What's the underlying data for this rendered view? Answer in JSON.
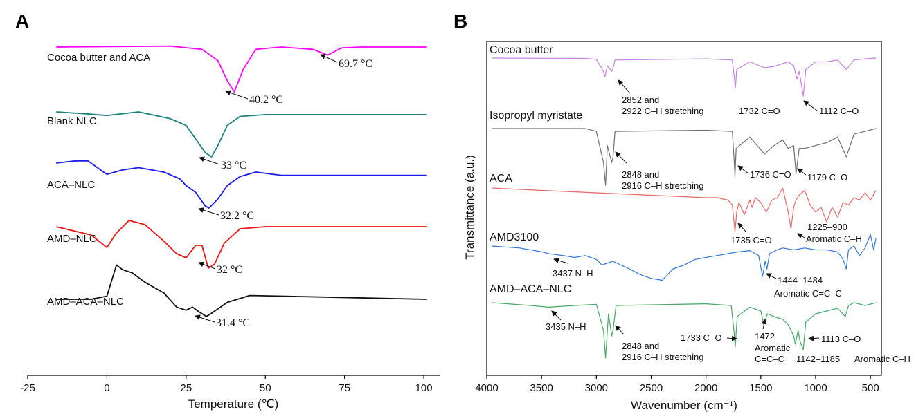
{
  "chart_data": [
    {
      "panel": "A",
      "type": "line",
      "xlabel": "Temperature (℃)",
      "ylabel": "",
      "xlim": [
        -25,
        105
      ],
      "xticks": [
        "-25",
        "0",
        "25",
        "50",
        "75",
        "100"
      ],
      "x_tick_values": [
        -25,
        0,
        25,
        50,
        75,
        100
      ],
      "grid": false,
      "series": [
        {
          "name": "Cocoa butter and ACA",
          "color": "#ff00ff",
          "x": [
            -16,
            20,
            30,
            35,
            38,
            40.2,
            43,
            47,
            55,
            65,
            69.7,
            74,
            80,
            101
          ],
          "y": [
            0,
            0.02,
            -0.05,
            -0.3,
            -0.75,
            -1.0,
            -0.5,
            -0.05,
            0,
            -0.05,
            -0.18,
            -0.02,
            0,
            0
          ]
        },
        {
          "name": "Blank NLC",
          "color": "#1a8080",
          "x": [
            -16,
            -5,
            0,
            5,
            10,
            20,
            25,
            28,
            31,
            33,
            35,
            38,
            42,
            50,
            101
          ],
          "y": [
            0,
            -0.05,
            -0.08,
            -0.04,
            0,
            -0.15,
            -0.3,
            -0.6,
            -0.9,
            -1.0,
            -0.75,
            -0.3,
            -0.1,
            -0.06,
            -0.06
          ]
        },
        {
          "name": "ACA–NLC",
          "color": "#1a1aee",
          "x": [
            -16,
            -10,
            -6,
            -3,
            0,
            5,
            10,
            18,
            23,
            25,
            28,
            31,
            32.2,
            35,
            38,
            42,
            47,
            55,
            101
          ],
          "y": [
            0,
            0.05,
            0.05,
            -0.1,
            -0.25,
            -0.15,
            -0.1,
            -0.2,
            -0.35,
            -0.5,
            -0.65,
            -0.95,
            -1.0,
            -0.8,
            -0.5,
            -0.3,
            -0.2,
            -0.27,
            -0.27
          ]
        },
        {
          "name": "AMD–NLC",
          "color": "#ee1111",
          "x": [
            -16,
            -5,
            0,
            3,
            7,
            12,
            18,
            22,
            25,
            28,
            30,
            32,
            34,
            37,
            42,
            50,
            101
          ],
          "y": [
            0,
            -0.2,
            -0.5,
            -0.15,
            0.15,
            0.05,
            -0.35,
            -0.65,
            -0.75,
            -0.45,
            -0.45,
            -1.0,
            -0.9,
            -0.4,
            -0.05,
            0,
            0
          ]
        },
        {
          "name": "AMD–ACA–NLC",
          "color": "#111111",
          "x": [
            -16,
            -5,
            0,
            3,
            5,
            8,
            12,
            18,
            22,
            25,
            27,
            29,
            31.4,
            33,
            38,
            45,
            55,
            101
          ],
          "y": [
            0,
            0,
            0.1,
            1.1,
            0.95,
            0.85,
            0.55,
            0.2,
            -0.25,
            -0.35,
            -0.25,
            -0.4,
            -0.55,
            -0.45,
            -0.1,
            0.12,
            0.1,
            0
          ]
        }
      ],
      "annotations": [
        "40.2 °C",
        "69.7 °C",
        "33 °C",
        "32.2 °C",
        "32 °C",
        "31.4 °C"
      ]
    },
    {
      "panel": "B",
      "type": "line",
      "xlabel": "Wavenumber (cm⁻¹)",
      "ylabel": "Transmittance (a.u.)",
      "xlim": [
        4000,
        400
      ],
      "xticks": [
        "4000",
        "3500",
        "3000",
        "2500",
        "2000",
        "1500",
        "1000",
        "500"
      ],
      "x_tick_values": [
        4000,
        3500,
        3000,
        2500,
        2000,
        1500,
        1000,
        500
      ],
      "grid": false,
      "series": [
        {
          "name": "Cocoa butter",
          "color": "#c77fe0",
          "x": [
            3950,
            3100,
            3000,
            2935,
            2922,
            2900,
            2860,
            2852,
            2830,
            2000,
            1760,
            1740,
            1732,
            1720,
            1600,
            1470,
            1380,
            1250,
            1200,
            1170,
            1150,
            1112,
            1090,
            1000,
            900,
            800,
            720,
            650,
            550,
            450
          ],
          "y": [
            0.0,
            0.01,
            0.03,
            0.35,
            0.5,
            0.2,
            0.35,
            0.32,
            0.05,
            0.02,
            0.05,
            0.55,
            0.8,
            0.3,
            0.1,
            0.25,
            0.22,
            0.1,
            0.2,
            0.55,
            0.35,
            1.0,
            0.3,
            0.1,
            0.1,
            0.05,
            0.3,
            0.05,
            0.02,
            0.0
          ]
        },
        {
          "name": "Isopropyl myristate",
          "color": "#707070",
          "x": [
            3950,
            3100,
            3000,
            2935,
            2916,
            2900,
            2860,
            2848,
            2830,
            2000,
            1760,
            1745,
            1736,
            1725,
            1600,
            1466,
            1380,
            1300,
            1250,
            1200,
            1179,
            1150,
            1100,
            1000,
            900,
            800,
            720,
            650,
            550,
            450
          ],
          "y": [
            0.0,
            0.0,
            0.05,
            0.6,
            1.0,
            0.3,
            0.6,
            0.5,
            0.05,
            0.03,
            0.05,
            0.5,
            0.85,
            0.35,
            0.15,
            0.45,
            0.3,
            0.2,
            0.35,
            0.3,
            0.8,
            0.35,
            0.35,
            0.3,
            0.25,
            0.15,
            0.5,
            0.1,
            0.05,
            0.0
          ]
        },
        {
          "name": "ACA",
          "color": "#ee6666",
          "x": [
            3950,
            3500,
            3000,
            2500,
            2000,
            1900,
            1800,
            1760,
            1745,
            1735,
            1720,
            1700,
            1650,
            1600,
            1580,
            1550,
            1500,
            1450,
            1400,
            1350,
            1300,
            1250,
            1225,
            1200,
            1180,
            1150,
            1100,
            1050,
            1000,
            950,
            900,
            850,
            800,
            750,
            700,
            650,
            600,
            550,
            500,
            450
          ],
          "y": [
            0.0,
            0.05,
            0.1,
            0.15,
            0.2,
            0.2,
            0.25,
            0.35,
            0.7,
            0.9,
            0.5,
            0.3,
            0.55,
            0.25,
            0.4,
            0.2,
            0.3,
            0.5,
            0.25,
            0.2,
            0.0,
            0.5,
            0.85,
            0.4,
            0.25,
            0.15,
            0.05,
            0.35,
            0.5,
            0.4,
            0.7,
            0.4,
            0.6,
            0.3,
            0.35,
            0.2,
            0.25,
            0.1,
            0.25,
            0.05
          ]
        },
        {
          "name": "AMD3100",
          "color": "#3377dd",
          "x": [
            3950,
            3700,
            3500,
            3437,
            3300,
            3200,
            3100,
            3000,
            2950,
            2850,
            2700,
            2600,
            2500,
            2400,
            2300,
            2200,
            2100,
            2000,
            1900,
            1800,
            1700,
            1600,
            1520,
            1484,
            1460,
            1444,
            1420,
            1350,
            1300,
            1200,
            1100,
            1000,
            900,
            800,
            750,
            720,
            700,
            650,
            600,
            550,
            500,
            470,
            450
          ],
          "y": [
            0.0,
            0.05,
            0.15,
            0.2,
            0.25,
            0.3,
            0.25,
            0.35,
            0.5,
            0.4,
            0.6,
            0.75,
            0.85,
            0.9,
            0.6,
            0.5,
            0.35,
            0.3,
            0.25,
            0.2,
            0.15,
            0.12,
            0.25,
            0.8,
            0.4,
            0.6,
            0.2,
            0.1,
            0.05,
            0.1,
            0.05,
            0.1,
            0.1,
            0.15,
            0.35,
            0.6,
            0.1,
            0.0,
            0.25,
            0.05,
            -0.3,
            0.1,
            -0.2
          ]
        },
        {
          "name": "AMD–ACA–NLC",
          "color": "#44aa66",
          "x": [
            3950,
            3600,
            3435,
            3200,
            3000,
            2935,
            2916,
            2890,
            2860,
            2848,
            2820,
            2000,
            1770,
            1745,
            1733,
            1715,
            1600,
            1500,
            1472,
            1440,
            1380,
            1300,
            1250,
            1200,
            1185,
            1160,
            1142,
            1113,
            1090,
            1000,
            900,
            800,
            730,
            700,
            650,
            550,
            450
          ],
          "y": [
            0.0,
            0.05,
            0.08,
            0.05,
            0.03,
            0.5,
            1.0,
            0.2,
            0.6,
            0.5,
            0.05,
            0.02,
            0.05,
            0.5,
            0.8,
            0.25,
            0.08,
            0.15,
            0.4,
            0.2,
            0.25,
            0.3,
            0.4,
            0.6,
            0.75,
            0.5,
            0.7,
            0.85,
            0.35,
            0.2,
            0.15,
            0.1,
            0.25,
            0.05,
            0.0,
            0.05,
            0.0
          ]
        }
      ],
      "annotations": [
        "2852 and",
        "2922 C–H stretching",
        "1732 C=O",
        "1112 C–O",
        "2848 and",
        "2916 C–H stretching",
        "1736 C=O",
        "1179 C–O",
        "1735 C=O",
        "1225–900",
        "Aromatic C–H",
        "3437 N–H",
        "1444–1484",
        "Aromatic C=C–C",
        "3435 N–H",
        "2848 and",
        "2916 C–H stretching",
        "1733 C=O",
        "1472",
        "Aromatic",
        "C=C–C",
        "1113 C–O",
        "1142–1185",
        "Aromatic C–H"
      ]
    }
  ],
  "panels": {
    "a": "A",
    "b": "B"
  }
}
